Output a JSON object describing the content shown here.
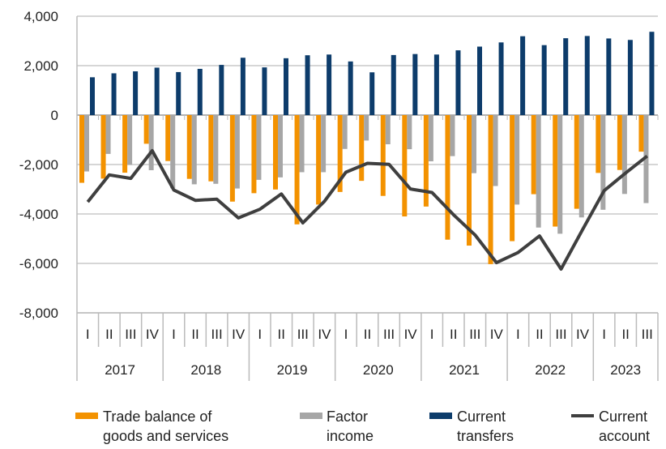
{
  "chart_data": {
    "type": "bar",
    "title": "",
    "xlabel": "",
    "ylabel": "",
    "ylim": [
      -8000,
      4000
    ],
    "yticks": [
      4000,
      2000,
      0,
      -2000,
      -4000,
      -6000,
      -8000
    ],
    "ytick_labels": [
      "4,000",
      "2,000",
      "0",
      "-2,000",
      "-4,000",
      "-6,000",
      "-8,000"
    ],
    "grid": true,
    "legend_position": "bottom",
    "years": [
      {
        "label": "2017",
        "quarters": [
          "I",
          "II",
          "III",
          "IV"
        ]
      },
      {
        "label": "2018",
        "quarters": [
          "I",
          "II",
          "III",
          "IV"
        ]
      },
      {
        "label": "2019",
        "quarters": [
          "I",
          "II",
          "III",
          "IV"
        ]
      },
      {
        "label": "2020",
        "quarters": [
          "I",
          "II",
          "III",
          "IV"
        ]
      },
      {
        "label": "2021",
        "quarters": [
          "I",
          "II",
          "III",
          "IV"
        ]
      },
      {
        "label": "2022",
        "quarters": [
          "I",
          "II",
          "III",
          "IV"
        ]
      },
      {
        "label": "2023",
        "quarters": [
          "I",
          "II",
          "III"
        ]
      }
    ],
    "series": [
      {
        "name": "Trade balance of goods and services",
        "legend_lines": [
          "Trade balance of",
          "goods and services"
        ],
        "type": "bar",
        "color": "#F39200",
        "values": [
          -2740,
          -2570,
          -2330,
          -1160,
          -1860,
          -2580,
          -2680,
          -3500,
          -3160,
          -3010,
          -4420,
          -3620,
          -3110,
          -2660,
          -3270,
          -4100,
          -3700,
          -5040,
          -5280,
          -6030,
          -5100,
          -3200,
          -4510,
          -3790,
          -2340,
          -2220,
          -1480
        ]
      },
      {
        "name": "Factor income",
        "legend_lines": [
          "Factor",
          "income"
        ],
        "type": "bar",
        "color": "#A6A6A6",
        "values": [
          -2280,
          -1570,
          -2010,
          -2230,
          -2960,
          -2800,
          -2780,
          -2970,
          -2620,
          -2520,
          -2310,
          -2310,
          -1370,
          -1030,
          -1180,
          -1380,
          -1870,
          -1660,
          -2350,
          -2870,
          -3620,
          -4550,
          -4800,
          -4140,
          -3830,
          -3190,
          -3560
        ]
      },
      {
        "name": "Current transfers",
        "legend_lines": [
          "Current",
          "transfers"
        ],
        "type": "bar",
        "color": "#0D3C6B",
        "values": [
          1530,
          1690,
          1770,
          1920,
          1740,
          1870,
          2030,
          2320,
          1930,
          2300,
          2420,
          2450,
          2170,
          1730,
          2430,
          2470,
          2450,
          2620,
          2770,
          2940,
          3190,
          2830,
          3110,
          3200,
          3100,
          3040,
          3370
        ]
      },
      {
        "name": "Current account",
        "legend_lines": [
          "Current",
          "account"
        ],
        "type": "line",
        "color": "#3F3F3F",
        "values": [
          -3510,
          -2420,
          -2560,
          -1440,
          -3030,
          -3450,
          -3400,
          -4160,
          -3810,
          -3190,
          -4360,
          -3490,
          -2310,
          -1950,
          -1990,
          -2990,
          -3130,
          -4030,
          -4850,
          -5970,
          -5560,
          -4890,
          -6230,
          -4630,
          -3060,
          -2340,
          -1660
        ]
      }
    ]
  }
}
